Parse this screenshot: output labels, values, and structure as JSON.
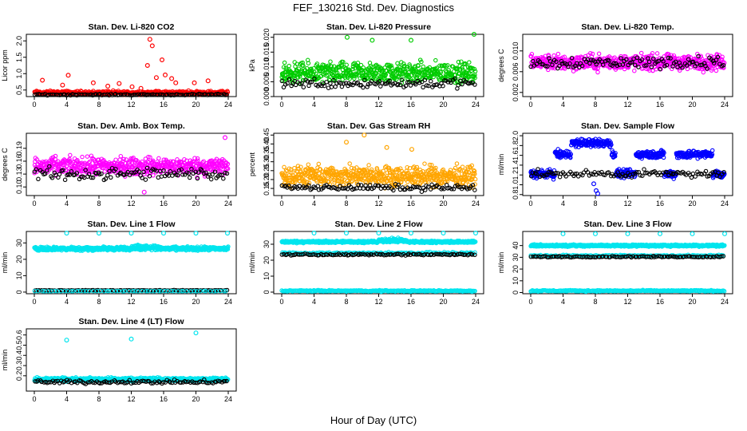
{
  "title": "FEF_130216  Std. Dev. Diagnostics",
  "xlabel": "Hour of Day (UTC)",
  "colors": {
    "red": "#ff0000",
    "green": "#00cc00",
    "magenta": "#ff00ff",
    "orange": "#ffa500",
    "blue": "#0000ff",
    "cyan": "#00e5ee",
    "black": "#000000"
  },
  "chart_data": [
    {
      "type": "scatter",
      "title": "Stan. Dev. Li-820 CO2",
      "ylabel": "Licor ppm",
      "xlim": [
        0,
        24
      ],
      "xticks": [
        0,
        4,
        8,
        12,
        16,
        20,
        24
      ],
      "ylim": [
        0.3,
        2.2
      ],
      "yticks": [
        0.5,
        1.0,
        1.5,
        2.0
      ],
      "ytick_labels": [
        "0.5",
        "1.0",
        "1.5",
        "2.0"
      ],
      "series": [
        {
          "color": "red",
          "n": 360,
          "base": 0.42,
          "spread": 0.08,
          "points": [
            [
              1,
              0.8
            ],
            [
              3.5,
              0.65
            ],
            [
              4.2,
              0.95
            ],
            [
              7.3,
              0.72
            ],
            [
              9.1,
              0.62
            ],
            [
              10.5,
              0.7
            ],
            [
              12.1,
              0.6
            ],
            [
              13.2,
              0.55
            ],
            [
              14.0,
              1.25
            ],
            [
              14.3,
              2.05
            ],
            [
              14.6,
              1.85
            ],
            [
              15.1,
              0.88
            ],
            [
              15.8,
              1.42
            ],
            [
              16.2,
              0.96
            ],
            [
              17.0,
              0.85
            ],
            [
              17.5,
              0.72
            ],
            [
              19.8,
              0.72
            ],
            [
              21.5,
              0.78
            ]
          ]
        },
        {
          "color": "black",
          "n": 110,
          "base": 0.36,
          "spread": 0.03
        }
      ]
    },
    {
      "type": "scatter",
      "title": "Stan. Dev. Li-820 Pressure",
      "ylabel": "kPa",
      "xlim": [
        0,
        24
      ],
      "xticks": [
        0,
        4,
        8,
        12,
        16,
        20,
        24
      ],
      "ylim": [
        0.0,
        0.021
      ],
      "yticks": [
        0.0,
        0.005,
        0.01,
        0.015,
        0.02
      ],
      "ytick_labels": [
        "0.000",
        "0.005",
        "0.010",
        "0.015",
        "0.020"
      ],
      "series": [
        {
          "color": "green",
          "n": 560,
          "base": 0.008,
          "spread": 0.005,
          "points": [
            [
              8.1,
              0.02
            ],
            [
              11.2,
              0.019
            ],
            [
              16.0,
              0.019
            ],
            [
              23.8,
              0.021
            ]
          ]
        },
        {
          "color": "black",
          "n": 110,
          "base": 0.0045,
          "spread": 0.0025
        }
      ]
    },
    {
      "type": "scatter",
      "title": "Stan. Dev. Li-820 Temp.",
      "ylabel": "degrees C",
      "xlim": [
        0,
        24
      ],
      "xticks": [
        0,
        4,
        8,
        12,
        16,
        20,
        24
      ],
      "ylim": [
        0.0012,
        0.0132
      ],
      "yticks": [
        0.002,
        0.006,
        0.01
      ],
      "ytick_labels": [
        "0.002",
        "0.006",
        "0.010"
      ],
      "series": [
        {
          "color": "magenta",
          "n": 560,
          "base": 0.0078,
          "spread": 0.0022
        },
        {
          "color": "black",
          "n": 110,
          "base": 0.0078,
          "spread": 0.0017
        }
      ]
    },
    {
      "type": "scatter",
      "title": "Stan. Dev. Amb. Box Temp.",
      "ylabel": "degrees C",
      "xlim": [
        0,
        24
      ],
      "xticks": [
        0,
        4,
        8,
        12,
        16,
        20,
        24
      ],
      "ylim": [
        0.08,
        0.225
      ],
      "yticks": [
        0.1,
        0.13,
        0.16,
        0.19
      ],
      "ytick_labels": [
        "0.10",
        "0.13",
        "0.16",
        "0.19"
      ],
      "series": [
        {
          "color": "magenta",
          "n": 560,
          "base": 0.148,
          "spread": 0.03,
          "points": [
            [
              23.6,
              0.215
            ],
            [
              13.6,
              0.088
            ]
          ]
        },
        {
          "color": "black",
          "n": 110,
          "base": 0.13,
          "spread": 0.022
        }
      ]
    },
    {
      "type": "scatter",
      "title": "Stan. Dev. Gas Stream RH",
      "ylabel": "percent",
      "xlim": [
        0,
        24
      ],
      "xticks": [
        0,
        4,
        8,
        12,
        16,
        20,
        24
      ],
      "ylim": [
        0.11,
        0.46
      ],
      "yticks": [
        0.15,
        0.2,
        0.25,
        0.3,
        0.35,
        0.4,
        0.45
      ],
      "ytick_labels": [
        "0.15",
        "0.20",
        "0.25",
        "0.30",
        "0.35",
        "0.40",
        "0.45"
      ],
      "series": [
        {
          "color": "orange",
          "n": 600,
          "base": 0.22,
          "spread": 0.08,
          "points": [
            [
              10.2,
              0.45
            ],
            [
              8.0,
              0.41
            ],
            [
              13.0,
              0.38
            ],
            [
              16.1,
              0.37
            ]
          ]
        },
        {
          "color": "black",
          "n": 110,
          "base": 0.155,
          "spread": 0.025
        }
      ]
    },
    {
      "type": "scatter",
      "title": "Stan. Dev. Sample Flow",
      "ylabel": "ml/min",
      "xlim": [
        0,
        24
      ],
      "xticks": [
        0,
        4,
        8,
        12,
        16,
        20,
        24
      ],
      "ylim": [
        0.78,
        2.05
      ],
      "yticks": [
        0.8,
        1.0,
        1.2,
        1.4,
        1.6,
        1.8,
        2.0
      ],
      "ytick_labels": [
        "0.8",
        "1.0",
        "1.2",
        "1.4",
        "1.6",
        "1.8",
        "2.0"
      ],
      "series": [
        {
          "color": "blue",
          "n": 600,
          "band": "sample",
          "points": [
            [
              8.3,
              0.82
            ],
            [
              8.1,
              0.88
            ],
            [
              7.8,
              1.02
            ]
          ]
        },
        {
          "color": "black",
          "n": 110,
          "base": 1.22,
          "spread": 0.1
        }
      ]
    },
    {
      "type": "scatter",
      "title": "Stan. Dev. Line 1 Flow",
      "ylabel": "ml/min",
      "xlim": [
        0,
        24
      ],
      "xticks": [
        0,
        4,
        8,
        12,
        16,
        20,
        24
      ],
      "ylim": [
        -1,
        37
      ],
      "yticks": [
        0,
        10,
        20,
        30
      ],
      "ytick_labels": [
        "0",
        "10",
        "20",
        "30"
      ],
      "series": [
        {
          "color": "cyan",
          "n": 700,
          "base": 26.5,
          "spread": 1.6,
          "bump": [
            12,
            15.5,
            2.5
          ],
          "points": [
            [
              4,
              36
            ],
            [
              8,
              36
            ],
            [
              12,
              36
            ],
            [
              16,
              36
            ],
            [
              20,
              36
            ],
            [
              23.9,
              36
            ]
          ]
        },
        {
          "color": "black",
          "n": 110,
          "base": 1.0,
          "spread": 0.3
        },
        {
          "color": "cyan",
          "n": 60,
          "base": 0.6,
          "spread": 0.2
        }
      ]
    },
    {
      "type": "scatter",
      "title": "Stan. Dev. Line 2 Flow",
      "ylabel": "ml/min",
      "xlim": [
        0,
        24
      ],
      "xticks": [
        0,
        4,
        8,
        12,
        16,
        20,
        24
      ],
      "ylim": [
        -1,
        38
      ],
      "yticks": [
        0,
        10,
        20,
        30
      ],
      "ytick_labels": [
        "0",
        "10",
        "20",
        "30"
      ],
      "series": [
        {
          "color": "cyan",
          "n": 650,
          "base": 31.5,
          "spread": 1.0,
          "bump": [
            12,
            15.5,
            3
          ],
          "points": [
            [
              4,
              37
            ],
            [
              8,
              37
            ],
            [
              12,
              37
            ],
            [
              16,
              37
            ],
            [
              20,
              37
            ],
            [
              24,
              37
            ]
          ]
        },
        {
          "color": "cyan",
          "n": 140,
          "base": 24.5,
          "spread": 0.8
        },
        {
          "color": "black",
          "n": 110,
          "base": 23.5,
          "spread": 0.7
        },
        {
          "color": "cyan",
          "n": 250,
          "base": 0.8,
          "spread": 0.6
        }
      ]
    },
    {
      "type": "scatter",
      "title": "Stan. Dev. Line 3 Flow",
      "ylabel": "ml/min",
      "xlim": [
        0,
        24
      ],
      "xticks": [
        0,
        4,
        8,
        12,
        16,
        20,
        24
      ],
      "ylim": [
        -1,
        52
      ],
      "yticks": [
        0,
        10,
        20,
        30,
        40
      ],
      "ytick_labels": [
        "0",
        "10",
        "20",
        "30",
        "40"
      ],
      "series": [
        {
          "color": "cyan",
          "n": 650,
          "base": 40,
          "spread": 1.2,
          "points": [
            [
              4,
              50
            ],
            [
              8,
              50
            ],
            [
              12,
              50
            ],
            [
              16,
              50
            ],
            [
              20,
              50
            ],
            [
              24,
              50
            ]
          ]
        },
        {
          "color": "cyan",
          "n": 120,
          "base": 31.5,
          "spread": 0.8
        },
        {
          "color": "black",
          "n": 110,
          "base": 30.5,
          "spread": 0.8
        },
        {
          "color": "cyan",
          "n": 250,
          "base": 1.5,
          "spread": 0.8
        }
      ]
    },
    {
      "type": "scatter",
      "title": "Stan. Dev. Line 4 (LT) Flow",
      "ylabel": "ml/min",
      "xlim": [
        0,
        24
      ],
      "xticks": [
        0,
        4,
        8,
        12,
        16,
        20,
        24
      ],
      "ylim": [
        0.05,
        0.66
      ],
      "yticks": [
        0.2,
        0.3,
        0.4,
        0.5,
        0.6
      ],
      "ytick_labels": [
        "0.2",
        "0.3",
        "0.4",
        "0.5",
        "0.6"
      ],
      "series": [
        {
          "color": "cyan",
          "n": 650,
          "base": 0.165,
          "spread": 0.025,
          "points": [
            [
              4,
              0.55
            ],
            [
              12,
              0.56
            ],
            [
              20,
              0.62
            ]
          ]
        },
        {
          "color": "black",
          "n": 110,
          "base": 0.14,
          "spread": 0.025
        }
      ]
    }
  ]
}
